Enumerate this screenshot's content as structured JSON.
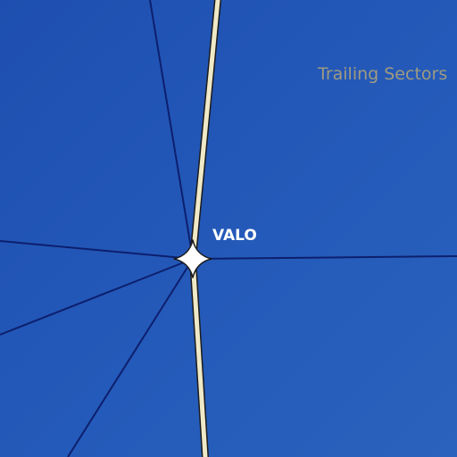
{
  "map": {
    "region_label": "Trailing Sectors",
    "node": {
      "name": "VALO",
      "icon": "star-waypoint-icon"
    },
    "colors": {
      "background": "#2358b8",
      "route_line": "#0d1f6e",
      "main_route": "#efe9c8",
      "main_route_outline": "#1b1b1b",
      "region_label": "#a09a80",
      "node_label": "#ffffff"
    }
  }
}
